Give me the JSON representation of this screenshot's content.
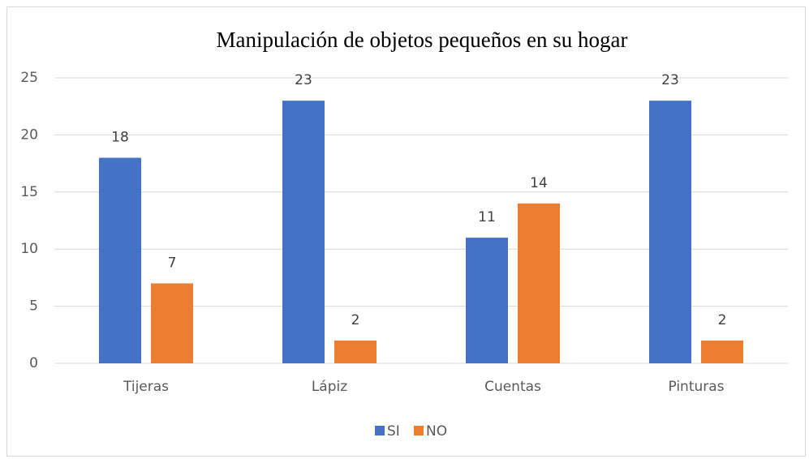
{
  "chart_data": {
    "type": "bar",
    "title": "Manipulación de objetos pequeños en su hogar",
    "categories": [
      "Tijeras",
      "Lápiz",
      "Cuentas",
      "Pinturas"
    ],
    "series": [
      {
        "name": "SI",
        "color": "#4472c4",
        "values": [
          18,
          23,
          11,
          23
        ]
      },
      {
        "name": "NO",
        "color": "#ed7d31",
        "values": [
          7,
          2,
          14,
          2
        ]
      }
    ],
    "ylim": [
      0,
      25
    ],
    "yticks": [
      0,
      5,
      10,
      15,
      20,
      25
    ],
    "grid": true,
    "legend": "bottom"
  }
}
